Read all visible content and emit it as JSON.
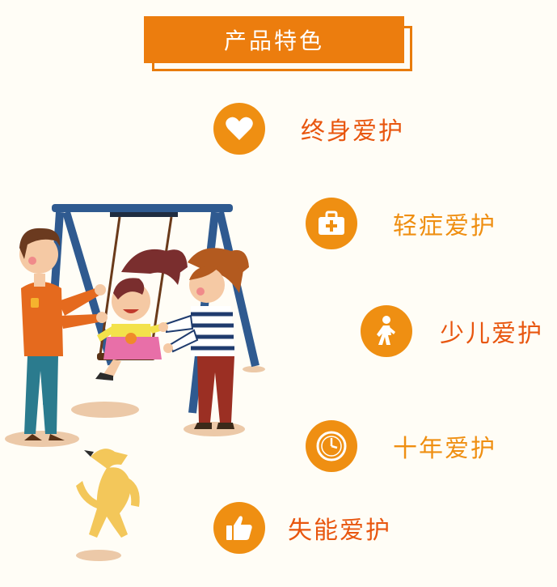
{
  "header": {
    "title": "产品特色"
  },
  "features": [
    {
      "label": "终身爱护",
      "icon": "heart-icon"
    },
    {
      "label": "轻症爱护",
      "icon": "medical-kit-icon"
    },
    {
      "label": "少儿爱护",
      "icon": "walking-child-icon"
    },
    {
      "label": "十年爱护",
      "icon": "clock-icon"
    },
    {
      "label": "失能爱护",
      "icon": "thumbs-up-icon"
    }
  ],
  "colors": {
    "accent": "#ec7d0e",
    "icon_bg": "#ef8f12",
    "label_dark": "#e8560f",
    "background": "#fffdf6"
  }
}
